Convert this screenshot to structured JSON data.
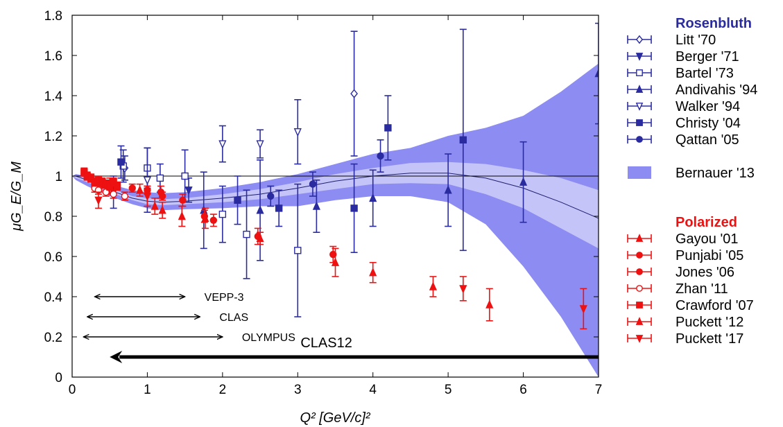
{
  "chart_data": {
    "type": "scatter",
    "xlabel": "Q² [GeV/c]²",
    "ylabel": "μG_E/G_M",
    "xlim": [
      0,
      7
    ],
    "ylim": [
      0,
      1.8
    ],
    "xticks": [
      "0",
      "1",
      "2",
      "3",
      "4",
      "5",
      "6",
      "7"
    ],
    "yticks": [
      "0",
      "0.2",
      "0.4",
      "0.6",
      "0.8",
      "1",
      "1.2",
      "1.4",
      "1.6",
      "1.8"
    ],
    "grid": false,
    "legend_position": "right",
    "legend_groups": [
      {
        "title": "Rosenbluth",
        "color": "#2b2ba0"
      },
      {
        "title": "Polarized",
        "color": "#ee1111"
      }
    ],
    "reference_line_y": 1.0,
    "band": {
      "name": "Bernauer '13",
      "colors": {
        "outer": "#8c8cf2",
        "inner": "#c4c4f8",
        "line": "#1f1f70"
      },
      "x": [
        0,
        0.05,
        0.2,
        0.5,
        0.8,
        1.0,
        1.2,
        1.5,
        2.0,
        2.5,
        3.0,
        3.5,
        4.0,
        4.5,
        5.0,
        5.5,
        6.0,
        6.5,
        7.0
      ],
      "central": [
        1.0,
        1.0,
        0.98,
        0.93,
        0.89,
        0.875,
        0.87,
        0.875,
        0.89,
        0.91,
        0.94,
        0.975,
        1.0,
        1.015,
        1.015,
        0.99,
        0.94,
        0.87,
        0.79
      ],
      "inner_lower": [
        1.0,
        0.99,
        0.97,
        0.92,
        0.88,
        0.86,
        0.855,
        0.86,
        0.87,
        0.885,
        0.91,
        0.935,
        0.96,
        0.965,
        0.96,
        0.91,
        0.84,
        0.74,
        0.64
      ],
      "inner_upper": [
        1.0,
        1.0,
        0.99,
        0.94,
        0.9,
        0.89,
        0.885,
        0.89,
        0.91,
        0.935,
        0.97,
        1.01,
        1.04,
        1.065,
        1.07,
        1.06,
        1.03,
        0.99,
        0.93
      ],
      "lower": [
        1.0,
        0.98,
        0.95,
        0.9,
        0.86,
        0.84,
        0.83,
        0.835,
        0.84,
        0.85,
        0.85,
        0.88,
        0.9,
        0.9,
        0.87,
        0.76,
        0.55,
        0.3,
        0.0
      ],
      "upper": [
        1.0,
        1.01,
        1.0,
        0.96,
        0.93,
        0.92,
        0.915,
        0.92,
        0.94,
        0.97,
        1.01,
        1.06,
        1.11,
        1.14,
        1.2,
        1.24,
        1.3,
        1.42,
        1.56
      ]
    },
    "series": [
      {
        "name": "Litt '70",
        "group": "Rosenbluth",
        "marker": "diamond-open",
        "color": "#2b2ba0",
        "points": [
          [
            0.7,
            1.04,
            0.06
          ],
          [
            3.75,
            1.41,
            0.31
          ]
        ]
      },
      {
        "name": "Berger '71",
        "group": "Rosenbluth",
        "marker": "triangle-down",
        "color": "#2b2ba0",
        "points": [
          [
            0.55,
            0.92,
            0.08
          ],
          [
            1.55,
            0.93,
            0.06
          ]
        ]
      },
      {
        "name": "Bartel '73",
        "group": "Rosenbluth",
        "marker": "square-open",
        "color": "#2b2ba0",
        "points": [
          [
            0.68,
            1.05,
            0.08
          ],
          [
            1.0,
            1.04,
            0.1
          ],
          [
            1.17,
            0.99,
            0.07
          ],
          [
            1.5,
            1.0,
            0.13
          ],
          [
            2.0,
            0.81,
            0.14
          ],
          [
            2.32,
            0.71,
            0.22
          ],
          [
            3.0,
            0.63,
            0.33
          ]
        ]
      },
      {
        "name": "Andivahis '94",
        "group": "Rosenbluth",
        "marker": "triangle-up",
        "color": "#2b2ba0",
        "points": [
          [
            1.75,
            0.83,
            0.19
          ],
          [
            2.5,
            0.83,
            0.25
          ],
          [
            3.25,
            0.85,
            0.13
          ],
          [
            4.0,
            0.89,
            0.14
          ],
          [
            5.0,
            0.93,
            0.18
          ],
          [
            6.0,
            0.97,
            0.2
          ],
          [
            7.0,
            1.51,
            0.25
          ]
        ]
      },
      {
        "name": "Walker '94",
        "group": "Rosenbluth",
        "marker": "triangle-down-open",
        "color": "#2b2ba0",
        "points": [
          [
            1.0,
            0.98,
            0.16
          ],
          [
            2.0,
            1.16,
            0.09
          ],
          [
            2.5,
            1.16,
            0.07
          ],
          [
            3.0,
            1.22,
            0.16
          ]
        ]
      },
      {
        "name": "Christy '04",
        "group": "Rosenbluth",
        "marker": "square",
        "color": "#2b2ba0",
        "points": [
          [
            0.65,
            1.07,
            0.08
          ],
          [
            2.2,
            0.88,
            0.12
          ],
          [
            2.75,
            0.84,
            0.09
          ],
          [
            3.75,
            0.84,
            0.22
          ],
          [
            4.2,
            1.24,
            0.16
          ],
          [
            5.2,
            1.18,
            0.55
          ]
        ]
      },
      {
        "name": "Qattan '05",
        "group": "Rosenbluth",
        "marker": "circle",
        "color": "#2b2ba0",
        "points": [
          [
            2.64,
            0.9,
            0.05
          ],
          [
            3.2,
            0.96,
            0.06
          ],
          [
            4.1,
            1.1,
            0.08
          ]
        ]
      },
      {
        "name": "Gayou '01",
        "group": "Polarized",
        "marker": "triangle-up",
        "color": "#ee1111",
        "points": [
          [
            0.5,
            0.95,
            0.04
          ],
          [
            0.9,
            0.93,
            0.03
          ],
          [
            1.1,
            0.85,
            0.04
          ],
          [
            1.46,
            0.8,
            0.05
          ],
          [
            1.77,
            0.79,
            0.05
          ]
        ]
      },
      {
        "name": "Punjabi '05",
        "group": "Polarized",
        "marker": "circle",
        "color": "#ee1111",
        "points": [
          [
            0.5,
            0.95,
            0.03
          ],
          [
            1.18,
            0.92,
            0.03
          ],
          [
            1.47,
            0.88,
            0.03
          ],
          [
            1.76,
            0.8,
            0.03
          ],
          [
            1.88,
            0.78,
            0.03
          ],
          [
            2.47,
            0.7,
            0.04
          ],
          [
            3.47,
            0.61,
            0.04
          ]
        ]
      },
      {
        "name": "Jones '06",
        "group": "Polarized",
        "marker": "circle",
        "color": "#ee1111",
        "points": [
          [
            0.4,
            0.96,
            0.02
          ],
          [
            0.6,
            0.95,
            0.02
          ],
          [
            0.8,
            0.94,
            0.02
          ],
          [
            1.0,
            0.93,
            0.02
          ],
          [
            1.2,
            0.9,
            0.02
          ]
        ]
      },
      {
        "name": "Zhan '11",
        "group": "Polarized",
        "marker": "circle-open",
        "color": "#ee1111",
        "points": [
          [
            0.3,
            0.94,
            0.02
          ],
          [
            0.35,
            0.93,
            0.02
          ],
          [
            0.45,
            0.92,
            0.02
          ],
          [
            0.55,
            0.91,
            0.02
          ],
          [
            0.7,
            0.9,
            0.02
          ]
        ]
      },
      {
        "name": "Crawford '07",
        "group": "Polarized",
        "marker": "square",
        "color": "#ee1111",
        "points": [
          [
            0.16,
            1.02,
            0.02
          ],
          [
            0.2,
            1.0,
            0.02
          ],
          [
            0.25,
            0.99,
            0.02
          ],
          [
            0.3,
            0.97,
            0.02
          ],
          [
            0.35,
            0.98,
            0.02
          ],
          [
            0.4,
            0.97,
            0.02
          ],
          [
            0.45,
            0.96,
            0.02
          ],
          [
            0.5,
            0.95,
            0.02
          ],
          [
            0.55,
            0.97,
            0.02
          ],
          [
            0.6,
            0.95,
            0.02
          ]
        ]
      },
      {
        "name": "Puckett '12",
        "group": "Polarized",
        "marker": "triangle-up",
        "color": "#ee1111",
        "points": [
          [
            1.2,
            0.83,
            0.04
          ],
          [
            2.5,
            0.69,
            0.03
          ],
          [
            3.5,
            0.57,
            0.07
          ],
          [
            4.0,
            0.52,
            0.05
          ],
          [
            4.8,
            0.45,
            0.05
          ],
          [
            5.55,
            0.36,
            0.08
          ]
        ]
      },
      {
        "name": "Puckett '17",
        "group": "Polarized",
        "marker": "triangle-down",
        "color": "#ee1111",
        "points": [
          [
            0.35,
            0.88,
            0.04
          ],
          [
            1.0,
            0.9,
            0.05
          ],
          [
            5.2,
            0.44,
            0.06
          ],
          [
            6.8,
            0.34,
            0.1
          ]
        ]
      }
    ],
    "annotations": [
      {
        "label": "VEPP-3",
        "x_start": 0.3,
        "x_end": 1.5,
        "y": 0.4,
        "style": "double-arrow"
      },
      {
        "label": "CLAS",
        "x_start": 0.2,
        "x_end": 1.7,
        "y": 0.3,
        "style": "double-arrow"
      },
      {
        "label": "OLYMPUS",
        "x_start": 0.15,
        "x_end": 2.0,
        "y": 0.2,
        "style": "double-arrow"
      },
      {
        "label": "CLAS12",
        "x_start": 0.5,
        "x_end": 7.0,
        "y": 0.1,
        "style": "thick-left-arrow"
      }
    ]
  }
}
